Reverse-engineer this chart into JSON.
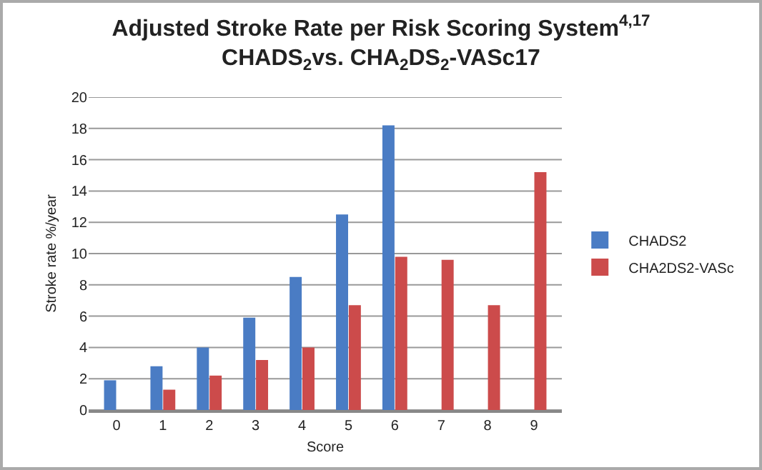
{
  "chart_data": {
    "type": "bar",
    "title": "Adjusted Stroke Rate per Risk Scoring System$^{4,17}$\nCHADS$_{2}$vs. CHA$_{2}$DS$_{2}$-VASc17",
    "xlabel": "Score",
    "ylabel": "Stroke rate %/year",
    "categories": [
      "0",
      "1",
      "2",
      "3",
      "4",
      "5",
      "6",
      "7",
      "8",
      "9"
    ],
    "series": [
      {
        "name": "CHADS2",
        "color": "#4a7cc4",
        "values": [
          1.9,
          2.8,
          4.0,
          5.9,
          8.5,
          12.5,
          18.2,
          null,
          null,
          null
        ]
      },
      {
        "name": "CHA2DS2-VASc",
        "color": "#cc4b4b",
        "values": [
          null,
          1.3,
          2.2,
          3.2,
          4.0,
          6.7,
          9.8,
          9.6,
          6.7,
          15.2
        ]
      }
    ],
    "ylim": [
      0,
      20
    ],
    "yticks": [
      0,
      2,
      4,
      6,
      8,
      10,
      12,
      14,
      16,
      18,
      20
    ],
    "grid": "y",
    "legend": "right"
  }
}
